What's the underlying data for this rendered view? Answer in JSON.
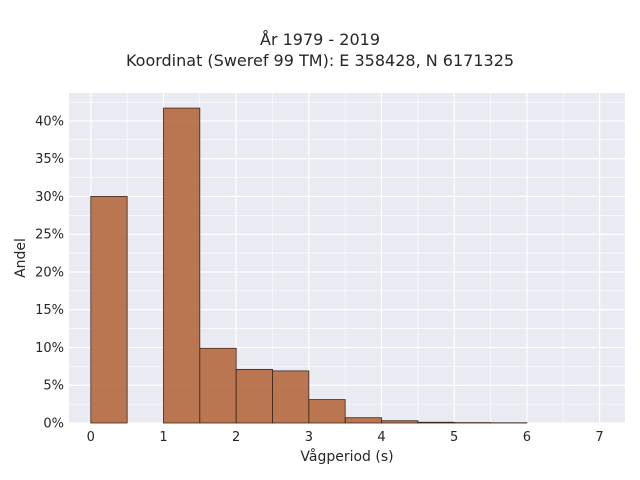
{
  "chart_data": {
    "type": "bar",
    "title": "År 1979 - 2019",
    "subtitle": "Koordinat (Sweref 99 TM): E 358428, N 6171325",
    "xlabel": "Vågperiod (s)",
    "ylabel": "Andel",
    "xlim": [
      -0.3,
      7.35
    ],
    "ylim": [
      0,
      0.437
    ],
    "x_ticks": [
      0,
      1,
      2,
      3,
      4,
      5,
      6,
      7
    ],
    "x_tick_labels": [
      "0",
      "1",
      "2",
      "3",
      "4",
      "5",
      "6",
      "7"
    ],
    "y_ticks": [
      0,
      0.05,
      0.1,
      0.15,
      0.2,
      0.25,
      0.3,
      0.35,
      0.4
    ],
    "y_tick_labels": [
      "0%",
      "5%",
      "10%",
      "15%",
      "20%",
      "25%",
      "30%",
      "35%",
      "40%"
    ],
    "bin_width": 0.5,
    "bins": [
      {
        "x0": 0.0,
        "x1": 0.5,
        "value": 0.3
      },
      {
        "x0": 0.5,
        "x1": 1.0,
        "value": 0.0
      },
      {
        "x0": 1.0,
        "x1": 1.5,
        "value": 0.417
      },
      {
        "x0": 1.5,
        "x1": 2.0,
        "value": 0.099
      },
      {
        "x0": 2.0,
        "x1": 2.5,
        "value": 0.071
      },
      {
        "x0": 2.5,
        "x1": 3.0,
        "value": 0.069
      },
      {
        "x0": 3.0,
        "x1": 3.5,
        "value": 0.031
      },
      {
        "x0": 3.5,
        "x1": 4.0,
        "value": 0.007
      },
      {
        "x0": 4.0,
        "x1": 4.5,
        "value": 0.003
      },
      {
        "x0": 4.5,
        "x1": 5.0,
        "value": 0.001
      },
      {
        "x0": 5.0,
        "x1": 5.5,
        "value": 0.0005
      },
      {
        "x0": 5.5,
        "x1": 6.0,
        "value": 0.0003
      }
    ],
    "grid": true,
    "bar_color": "#b5693f",
    "bar_edge_color": "#3a2418",
    "background_color": "#eaeaf2",
    "grid_color": "#ffffff"
  }
}
